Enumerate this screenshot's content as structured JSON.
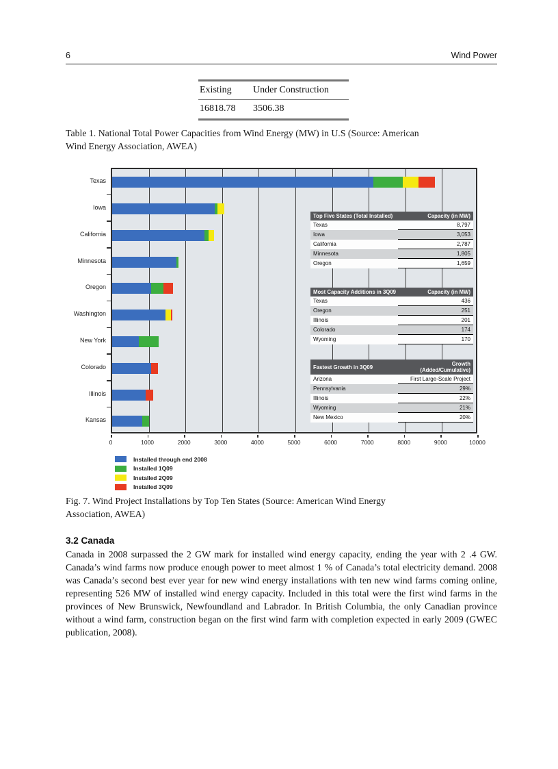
{
  "page": {
    "number": "6",
    "running_title": "Wind Power"
  },
  "table1": {
    "headers": [
      "Existing",
      "Under Construction"
    ],
    "values": [
      "16818.78",
      "3506.38"
    ],
    "caption_line1": "Table 1. National Total Power Capacities from Wind Energy (MW) in U.S (Source: American",
    "caption_line2": "Wind Energy Association, AWEA)"
  },
  "chart_data": {
    "type": "bar",
    "orientation": "horizontal",
    "stacked": true,
    "title": "",
    "xlabel": "",
    "ylabel": "",
    "xlim": [
      0,
      10000
    ],
    "x_ticks": [
      0,
      1000,
      2000,
      3000,
      4000,
      5000,
      6000,
      7000,
      8000,
      9000,
      10000
    ],
    "grid": "vertical",
    "legend_position": "bottom-left",
    "categories": [
      "Texas",
      "Iowa",
      "California",
      "Minnesota",
      "Oregon",
      "Washington",
      "New York",
      "Colorado",
      "Illinois",
      "Kansas"
    ],
    "series": [
      {
        "name": "Installed through end 2008",
        "color": "#3b6ebe",
        "values": [
          7118,
          2791,
          2517,
          1757,
          1067,
          1447,
          729,
          1068,
          915,
          815
        ]
      },
      {
        "name": "Installed 1Q09",
        "color": "#3cae3f",
        "values": [
          803,
          75,
          115,
          48,
          341,
          0,
          546,
          0,
          0,
          199
        ]
      },
      {
        "name": "Installed 2Q09",
        "color": "#f5e912",
        "values": [
          440,
          187,
          155,
          0,
          0,
          155,
          0,
          0,
          0,
          0
        ]
      },
      {
        "name": "Installed 3Q09",
        "color": "#e83b22",
        "values": [
          436,
          0,
          0,
          0,
          251,
          34,
          0,
          174,
          201,
          0
        ]
      }
    ],
    "inset_tables": [
      {
        "title": "Top Five States (Total Installed)",
        "value_header": "Capacity (in MW)",
        "rows": [
          {
            "name": "Texas",
            "value": "8,797"
          },
          {
            "name": "Iowa",
            "value": "3,053"
          },
          {
            "name": "California",
            "value": "2,787"
          },
          {
            "name": "Minnesota",
            "value": "1,805"
          },
          {
            "name": "Oregon",
            "value": "1,659"
          }
        ]
      },
      {
        "title": "Most Capacity Additions in 3Q09",
        "value_header": "Capacity (in MW)",
        "rows": [
          {
            "name": "Texas",
            "value": "436"
          },
          {
            "name": "Oregon",
            "value": "251"
          },
          {
            "name": "Illinois",
            "value": "201"
          },
          {
            "name": "Colorado",
            "value": "174"
          },
          {
            "name": "Wyoming",
            "value": "170"
          }
        ]
      },
      {
        "title": "Fastest Growth in 3Q09",
        "value_header": "Growth (Added/Cumulative)",
        "rows": [
          {
            "name": "Arizona",
            "value": "First Large-Scale Project"
          },
          {
            "name": "Pennsylvania",
            "value": "29%"
          },
          {
            "name": "Illinois",
            "value": "22%"
          },
          {
            "name": "Wyoming",
            "value": "21%"
          },
          {
            "name": "New Mexico",
            "value": "20%"
          }
        ]
      }
    ]
  },
  "fig7": {
    "caption_line1": "Fig. 7. Wind Project Installations by Top Ten States (Source: American Wind Energy",
    "caption_line2": "Association, AWEA)"
  },
  "canada": {
    "heading": "3.2 Canada",
    "body": "Canada in 2008 surpassed the 2 GW mark for installed wind energy capacity, ending the year with 2 .4 GW. Canada’s wind farms now produce enough power to meet almost 1 % of Canada’s total electricity demand. 2008 was Canada’s second best ever year for new wind energy installations with ten new wind farms coming online, representing 526 MW of installed wind energy capacity. Included in this total were the first wind farms in the provinces of New Brunswick, Newfoundland and Labrador. In British Columbia, the only Canadian province without a wind farm, construction began on the first wind farm with completion expected in early 2009 (GWEC publication, 2008)."
  }
}
